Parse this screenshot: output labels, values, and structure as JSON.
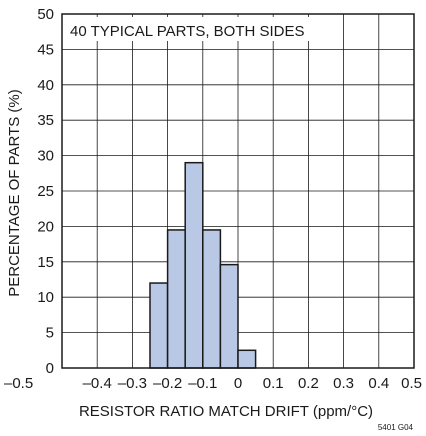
{
  "chart_data": {
    "type": "bar",
    "annotation": "40 TYPICAL PARTS, BOTH SIDES",
    "xlabel": "RESISTOR RATIO MATCH DRIFT (ppm/°C)",
    "ylabel": "PERCENTAGE OF PARTS (%)",
    "xlim": [
      -0.5,
      0.5
    ],
    "ylim": [
      0,
      50
    ],
    "x_ticks": [
      -0.5,
      -0.4,
      -0.3,
      -0.2,
      -0.1,
      0,
      0.1,
      0.2,
      0.3,
      0.4,
      0.5
    ],
    "x_tick_labels": [
      "–0.5",
      "–0.4",
      "–0.3",
      "–0.2",
      "–0.1",
      "0",
      "0.1",
      "0.2",
      "0.3",
      "0.4",
      "0.5"
    ],
    "y_ticks": [
      0,
      5,
      10,
      15,
      20,
      25,
      30,
      35,
      40,
      45,
      50
    ],
    "y_tick_labels": [
      "0",
      "5",
      "10",
      "15",
      "20",
      "25",
      "30",
      "35",
      "40",
      "45",
      "50"
    ],
    "grid": true,
    "bars": [
      {
        "x_start": -0.25,
        "x_end": -0.2,
        "value": 12
      },
      {
        "x_start": -0.2,
        "x_end": -0.15,
        "value": 19.5
      },
      {
        "x_start": -0.15,
        "x_end": -0.1,
        "value": 29
      },
      {
        "x_start": -0.1,
        "x_end": -0.05,
        "value": 19.5
      },
      {
        "x_start": -0.05,
        "x_end": 0,
        "value": 14.6
      },
      {
        "x_start": 0,
        "x_end": 0.05,
        "value": 2.5
      }
    ],
    "bar_color": "#b9c8e4",
    "bar_edge_color": "#1a1a1a",
    "figure_id": "5401 G04"
  }
}
